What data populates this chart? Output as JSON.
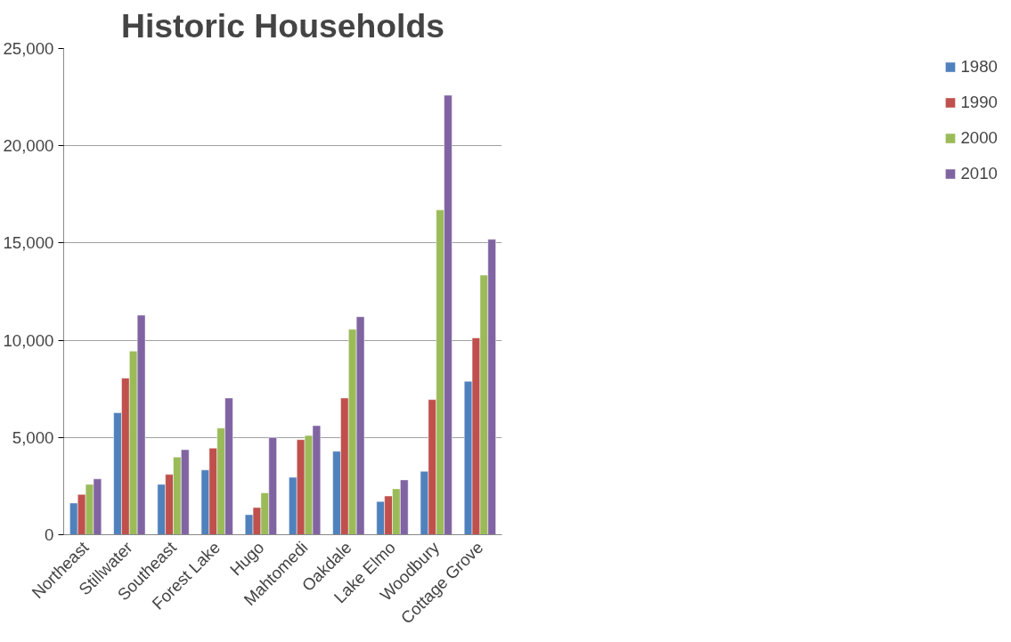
{
  "chart_data": {
    "type": "bar",
    "title": "Historic Households",
    "categories": [
      "Northeast",
      "Stillwater",
      "Southeast",
      "Forest Lake",
      "Hugo",
      "Mahtomedi",
      "Oakdale",
      "Lake Elmo",
      "Woodbury",
      "Cottage Grove"
    ],
    "series": [
      {
        "name": "1980",
        "color": "#4f81bd",
        "values": [
          1630,
          6270,
          2590,
          3330,
          1030,
          2950,
          4290,
          1710,
          3260,
          7890
        ]
      },
      {
        "name": "1990",
        "color": "#c0504d",
        "values": [
          2070,
          8050,
          3100,
          4450,
          1400,
          4890,
          7030,
          1990,
          6950,
          10120
        ]
      },
      {
        "name": "2000",
        "color": "#9bbb59",
        "values": [
          2590,
          9440,
          3990,
          5480,
          2150,
          5100,
          10560,
          2360,
          16700,
          13350
        ]
      },
      {
        "name": "2010",
        "color": "#8064a2",
        "values": [
          2870,
          11290,
          4370,
          7030,
          5000,
          5610,
          11210,
          2820,
          22600,
          15190
        ]
      }
    ],
    "ylim": [
      0,
      25000
    ],
    "yticks": [
      {
        "value": 0,
        "label": "0"
      },
      {
        "value": 5000,
        "label": "5,000"
      },
      {
        "value": 10000,
        "label": "10,000"
      },
      {
        "value": 15000,
        "label": "15,000"
      },
      {
        "value": 20000,
        "label": "20,000"
      },
      {
        "value": 25000,
        "label": "25,000"
      }
    ],
    "grid": "y",
    "legend": "right"
  }
}
